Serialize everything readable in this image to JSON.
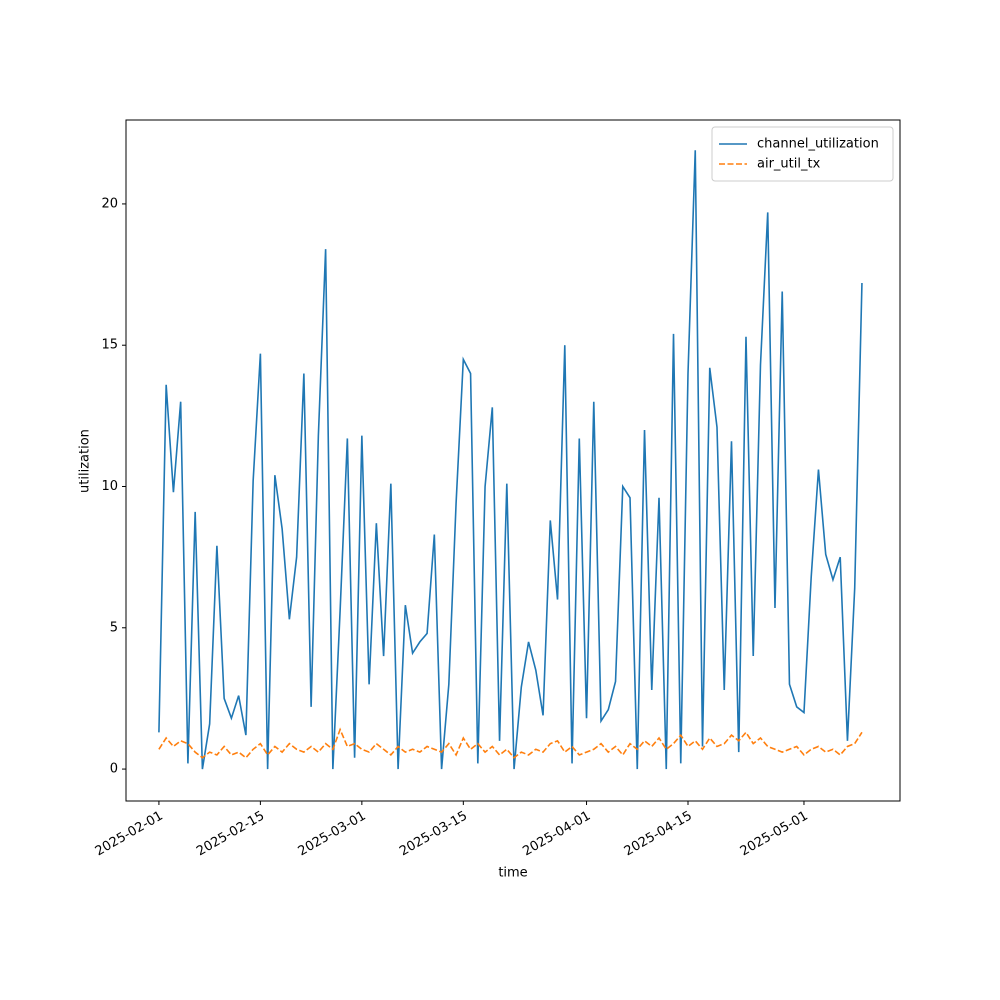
{
  "chart_data": {
    "type": "line",
    "xlabel": "time",
    "ylabel": "utilization",
    "xlim": [
      "2025-01-27T11:00:00Z",
      "2025-05-14T06:00:00Z"
    ],
    "xticks": [
      "2025-02-01",
      "2025-02-15",
      "2025-03-01",
      "2025-03-15",
      "2025-04-01",
      "2025-04-15",
      "2025-05-01"
    ],
    "ylim": [
      -1.13,
      22.97
    ],
    "yticks": [
      0,
      5,
      10,
      15,
      20
    ],
    "legend": "upper right",
    "grid": false,
    "x": [
      "2025-02-01",
      "2025-02-02",
      "2025-02-03",
      "2025-02-04",
      "2025-02-05",
      "2025-02-06",
      "2025-02-07",
      "2025-02-08",
      "2025-02-09",
      "2025-02-10",
      "2025-02-11",
      "2025-02-12",
      "2025-02-13",
      "2025-02-14",
      "2025-02-15",
      "2025-02-16",
      "2025-02-17",
      "2025-02-18",
      "2025-02-19",
      "2025-02-20",
      "2025-02-21",
      "2025-02-22",
      "2025-02-23",
      "2025-02-24",
      "2025-02-25",
      "2025-02-26",
      "2025-02-27",
      "2025-02-28",
      "2025-03-01",
      "2025-03-02",
      "2025-03-03",
      "2025-03-04",
      "2025-03-05",
      "2025-03-06",
      "2025-03-07",
      "2025-03-08",
      "2025-03-09",
      "2025-03-10",
      "2025-03-11",
      "2025-03-12",
      "2025-03-13",
      "2025-03-14",
      "2025-03-15",
      "2025-03-16",
      "2025-03-17",
      "2025-03-18",
      "2025-03-19",
      "2025-03-20",
      "2025-03-21",
      "2025-03-22",
      "2025-03-23",
      "2025-03-24",
      "2025-03-25",
      "2025-03-26",
      "2025-03-27",
      "2025-03-28",
      "2025-03-29",
      "2025-03-30",
      "2025-03-31",
      "2025-04-01",
      "2025-04-02",
      "2025-04-03",
      "2025-04-04",
      "2025-04-05",
      "2025-04-06",
      "2025-04-07",
      "2025-04-08",
      "2025-04-09",
      "2025-04-10",
      "2025-04-11",
      "2025-04-12",
      "2025-04-13",
      "2025-04-14",
      "2025-04-15",
      "2025-04-16",
      "2025-04-17",
      "2025-04-18",
      "2025-04-19",
      "2025-04-20",
      "2025-04-21",
      "2025-04-22",
      "2025-04-23",
      "2025-04-24",
      "2025-04-25",
      "2025-04-26",
      "2025-04-27",
      "2025-04-28",
      "2025-04-29",
      "2025-04-30",
      "2025-05-01",
      "2025-05-02",
      "2025-05-03",
      "2025-05-04",
      "2025-05-05",
      "2025-05-06",
      "2025-05-07",
      "2025-05-08",
      "2025-05-09"
    ],
    "series": [
      {
        "name": "channel_utilization",
        "color": "#1f77b4",
        "linestyle": "solid",
        "values": [
          1.3,
          13.6,
          9.8,
          13.0,
          0.2,
          9.1,
          0,
          1.6,
          7.9,
          2.5,
          1.8,
          2.6,
          1.2,
          10.2,
          14.7,
          0,
          10.4,
          8.5,
          5.3,
          7.5,
          14.0,
          2.2,
          11.8,
          18.4,
          0,
          5.6,
          11.7,
          0.4,
          11.8,
          3.0,
          8.7,
          4.0,
          10.1,
          0,
          5.8,
          4.1,
          4.5,
          4.8,
          8.3,
          0,
          3.0,
          9.4,
          14.5,
          14.0,
          0.2,
          10.0,
          12.8,
          1.0,
          10.1,
          0,
          2.9,
          4.5,
          3.5,
          1.9,
          8.8,
          6.0,
          15.0,
          0.2,
          11.7,
          1.8,
          13.0,
          1.7,
          2.1,
          3.1,
          10.0,
          9.6,
          0,
          12.0,
          2.8,
          9.6,
          0,
          15.4,
          0.2,
          14.0,
          21.9,
          0.8,
          14.2,
          12.1,
          2.8,
          11.6,
          0.6,
          15.3,
          4.0,
          14.3,
          19.7,
          5.7,
          16.9,
          3.0,
          2.2,
          2.0,
          6.8,
          10.6,
          7.6,
          6.7,
          7.5,
          1.0,
          6.4,
          17.2
        ]
      },
      {
        "name": "air_util_tx",
        "color": "#ff7f0e",
        "linestyle": "dashed",
        "values": [
          0.7,
          1.1,
          0.8,
          1.0,
          0.9,
          0.6,
          0.4,
          0.6,
          0.5,
          0.8,
          0.5,
          0.6,
          0.4,
          0.7,
          0.9,
          0.5,
          0.8,
          0.6,
          0.9,
          0.7,
          0.6,
          0.8,
          0.6,
          0.9,
          0.7,
          1.4,
          0.8,
          0.9,
          0.7,
          0.6,
          0.9,
          0.7,
          0.5,
          0.8,
          0.6,
          0.7,
          0.6,
          0.8,
          0.7,
          0.6,
          0.9,
          0.5,
          1.1,
          0.7,
          0.9,
          0.6,
          0.8,
          0.5,
          0.7,
          0.4,
          0.6,
          0.5,
          0.7,
          0.6,
          0.9,
          1.0,
          0.6,
          0.8,
          0.5,
          0.6,
          0.7,
          0.9,
          0.6,
          0.8,
          0.5,
          0.9,
          0.7,
          1.0,
          0.8,
          1.1,
          0.7,
          0.9,
          1.2,
          0.8,
          1.0,
          0.7,
          1.1,
          0.8,
          0.9,
          1.2,
          1.0,
          1.3,
          0.9,
          1.1,
          0.8,
          0.7,
          0.6,
          0.7,
          0.8,
          0.5,
          0.7,
          0.8,
          0.6,
          0.7,
          0.5,
          0.8,
          0.9,
          1.3
        ]
      }
    ]
  }
}
